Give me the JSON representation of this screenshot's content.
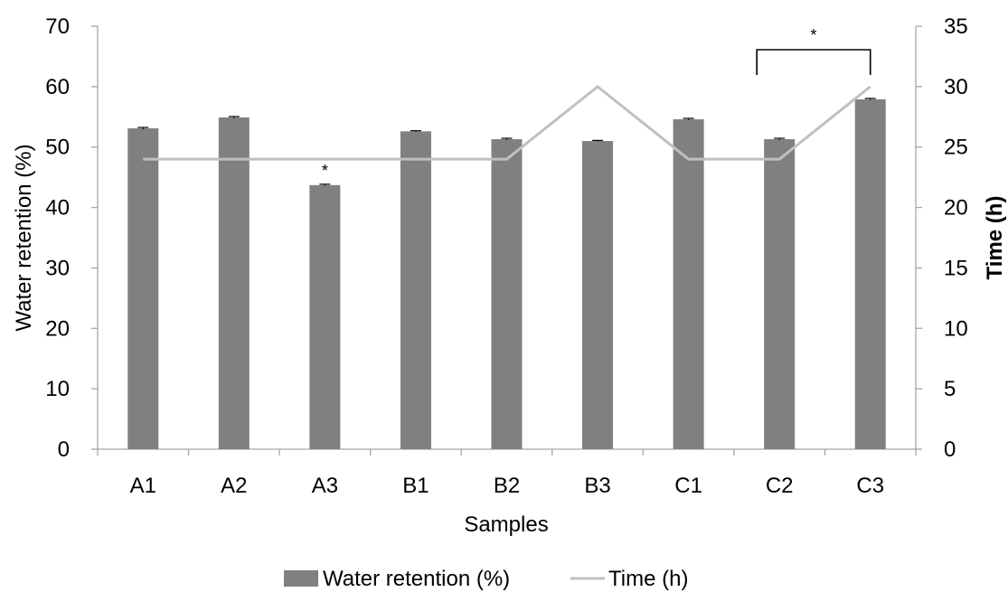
{
  "chart_data": {
    "type": "bar",
    "categories": [
      "A1",
      "A2",
      "A3",
      "B1",
      "B2",
      "B3",
      "C1",
      "C2",
      "C3"
    ],
    "series": [
      {
        "name": "Water retention (%)",
        "type": "bar",
        "axis": "left",
        "values": [
          53.1,
          54.9,
          43.7,
          52.6,
          51.3,
          51.0,
          54.6,
          51.3,
          57.9
        ],
        "error": [
          0.15,
          0.15,
          0.15,
          0.1,
          0.15,
          0.1,
          0.15,
          0.15,
          0.15
        ],
        "color": "#808080"
      },
      {
        "name": "Time (h)",
        "type": "line",
        "axis": "right",
        "values": [
          24,
          24,
          24,
          24,
          24,
          30,
          24,
          24,
          30
        ],
        "color": "#c0c0c0"
      }
    ],
    "xlabel": "Samples",
    "ylabel": "Water retention (%)",
    "y2label": "Time (h)",
    "ylim": [
      0,
      70
    ],
    "y2lim": [
      0,
      35
    ],
    "yticks": [
      "0",
      "10",
      "20",
      "30",
      "40",
      "50",
      "60",
      "70"
    ],
    "y2ticks": [
      "0",
      "5",
      "10",
      "15",
      "20",
      "25",
      "30",
      "35"
    ],
    "grid": false,
    "legend": "bottom",
    "annotations": [
      {
        "text": "*",
        "category": "A3",
        "kind": "marker"
      },
      {
        "text": "*",
        "from": "C2",
        "to": "C3",
        "kind": "bracket"
      }
    ]
  }
}
